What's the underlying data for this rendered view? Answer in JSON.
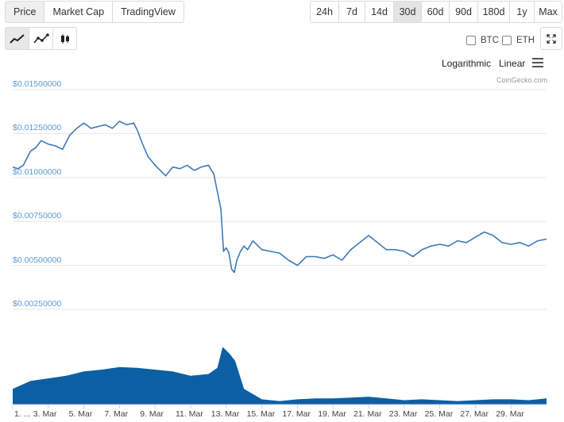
{
  "tabs": [
    {
      "label": "Price",
      "active": true
    },
    {
      "label": "Market Cap",
      "active": false
    },
    {
      "label": "TradingView",
      "active": false
    }
  ],
  "ranges": [
    {
      "label": "24h",
      "active": false
    },
    {
      "label": "7d",
      "active": false
    },
    {
      "label": "14d",
      "active": false
    },
    {
      "label": "30d",
      "active": true
    },
    {
      "label": "60d",
      "active": false
    },
    {
      "label": "90d",
      "active": false
    },
    {
      "label": "180d",
      "active": false
    },
    {
      "label": "1y",
      "active": false
    },
    {
      "label": "Max",
      "active": false
    }
  ],
  "chart_types": [
    "line-chart-icon",
    "smooth-line-chart-icon",
    "candlestick-chart-icon"
  ],
  "compare": {
    "btc": "BTC",
    "eth": "ETH"
  },
  "scale": {
    "log": "Logarithmic",
    "linear": "Linear"
  },
  "credits": "CoinGecko.com",
  "colors": {
    "line": "#3d7ab8",
    "volume": "#0d5fa3",
    "axis_label": "#5b9bd5",
    "grid": "#e6e6e6"
  },
  "chart_data": {
    "type": "line",
    "y_tick_labels": [
      "$0.01500000",
      "$0.01250000",
      "$0.01000000",
      "$0.00750000",
      "$0.00500000",
      "$0.00250000"
    ],
    "y_ticks": [
      0.015,
      0.0125,
      0.01,
      0.0075,
      0.005,
      0.0025
    ],
    "ylim": [
      0.0025,
      0.015
    ],
    "x_tick_labels": [
      "1. ...",
      "3. Mar",
      "5. Mar",
      "7. Mar",
      "9. Mar",
      "11. Mar",
      "13. Mar",
      "15. Mar",
      "17. Mar",
      "19. Mar",
      "21. Mar",
      "23. Mar",
      "25. Mar",
      "27. Mar",
      "29. Mar"
    ],
    "x_ticks": [
      1,
      3,
      5,
      7,
      9,
      11,
      13,
      15,
      17,
      19,
      21,
      23,
      25,
      27,
      29
    ],
    "xlim": [
      1,
      31
    ],
    "price": {
      "x": [
        1,
        1.3,
        1.6,
        2.0,
        2.3,
        2.6,
        3.0,
        3.4,
        3.8,
        4.2,
        4.6,
        5.0,
        5.4,
        5.8,
        6.2,
        6.6,
        7.0,
        7.4,
        7.8,
        8.0,
        8.3,
        8.6,
        9.0,
        9.3,
        9.6,
        10.0,
        10.4,
        10.8,
        11.2,
        11.6,
        12.0,
        12.3,
        12.5,
        12.7,
        12.85,
        13.0,
        13.15,
        13.3,
        13.45,
        13.6,
        13.8,
        14.0,
        14.2,
        14.5,
        15.0,
        15.5,
        16.0,
        16.5,
        17.0,
        17.5,
        18.0,
        18.5,
        19.0,
        19.5,
        20.0,
        20.5,
        21.0,
        21.5,
        22.0,
        22.5,
        23.0,
        23.5,
        24.0,
        24.5,
        25.0,
        25.5,
        26.0,
        26.5,
        27.0,
        27.5,
        28.0,
        28.5,
        29.0,
        29.5,
        30.0,
        30.5,
        31.0
      ],
      "y": [
        0.0106,
        0.0105,
        0.0107,
        0.0115,
        0.0117,
        0.0121,
        0.0119,
        0.0118,
        0.0116,
        0.0124,
        0.0128,
        0.0131,
        0.0128,
        0.0129,
        0.013,
        0.0128,
        0.0132,
        0.013,
        0.0131,
        0.0127,
        0.0119,
        0.0112,
        0.0107,
        0.0104,
        0.0101,
        0.0106,
        0.0105,
        0.0107,
        0.0104,
        0.0106,
        0.0107,
        0.0102,
        0.0092,
        0.0082,
        0.0058,
        0.006,
        0.0057,
        0.0048,
        0.0046,
        0.0053,
        0.0058,
        0.0061,
        0.0059,
        0.0064,
        0.0059,
        0.0058,
        0.0057,
        0.0053,
        0.005,
        0.0055,
        0.0055,
        0.0054,
        0.0056,
        0.0053,
        0.0059,
        0.0063,
        0.0067,
        0.0063,
        0.0059,
        0.0059,
        0.0058,
        0.0055,
        0.0059,
        0.0061,
        0.0062,
        0.0061,
        0.0064,
        0.0063,
        0.0066,
        0.0069,
        0.0067,
        0.0063,
        0.0062,
        0.0063,
        0.0061,
        0.0064,
        0.0065
      ]
    },
    "volume": {
      "x": [
        1,
        2,
        3,
        4,
        5,
        6,
        7,
        8,
        9,
        10,
        11,
        12,
        12.5,
        12.8,
        13.0,
        13.2,
        13.5,
        14.0,
        15,
        16,
        17,
        18,
        19,
        20,
        21,
        22,
        23,
        24,
        25,
        26,
        27,
        28,
        29,
        30,
        31
      ],
      "y": [
        0.18,
        0.27,
        0.3,
        0.33,
        0.38,
        0.4,
        0.43,
        0.42,
        0.4,
        0.38,
        0.33,
        0.35,
        0.42,
        0.66,
        0.62,
        0.58,
        0.5,
        0.18,
        0.06,
        0.04,
        0.06,
        0.07,
        0.07,
        0.08,
        0.09,
        0.07,
        0.05,
        0.06,
        0.05,
        0.04,
        0.05,
        0.06,
        0.06,
        0.05,
        0.07
      ]
    }
  }
}
